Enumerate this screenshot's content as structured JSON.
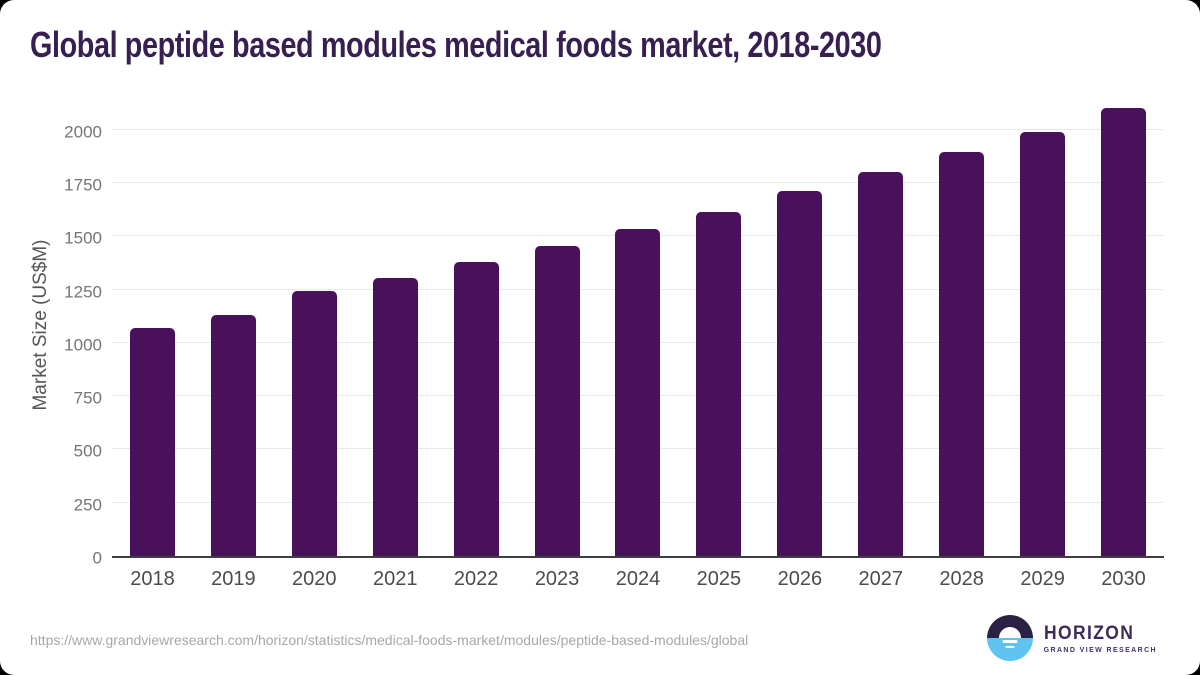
{
  "page": {
    "title": "Global peptide based modules medical foods market, 2018-2030",
    "source_url": "https://www.grandviewresearch.com/horizon/statistics/medical-foods-market/modules/peptide-based-modules/global"
  },
  "branding": {
    "logo_name": "HORIZON",
    "logo_subtitle": "GRAND VIEW RESEARCH"
  },
  "colors": {
    "bar": "#49105c",
    "grid": "#e8e8e8",
    "axis_line": "#3e3e3e",
    "title": "#371f52",
    "y_tick": "#757575",
    "x_tick": "#4c4c4c",
    "url": "#a7a7a7",
    "logo_dark": "#2b2145",
    "logo_blue": "#5ec3ee",
    "logo_text": "#3d2a56"
  },
  "chart_data": {
    "type": "bar",
    "title": "Global peptide based modules medical foods market, 2018-2030",
    "categories": [
      "2018",
      "2019",
      "2020",
      "2021",
      "2022",
      "2023",
      "2024",
      "2025",
      "2026",
      "2027",
      "2028",
      "2029",
      "2030"
    ],
    "values": [
      1070,
      1130,
      1245,
      1305,
      1380,
      1455,
      1535,
      1615,
      1710,
      1800,
      1895,
      1990,
      2100
    ],
    "series_name": "Market Size",
    "xlabel": "",
    "ylabel": "Market Size (US$M)",
    "ylim": [
      0,
      2200
    ],
    "yticks": [
      0,
      250,
      500,
      750,
      1000,
      1250,
      1500,
      1750,
      2000
    ],
    "grid": true,
    "legend": false,
    "bar_color": "#49105c"
  }
}
